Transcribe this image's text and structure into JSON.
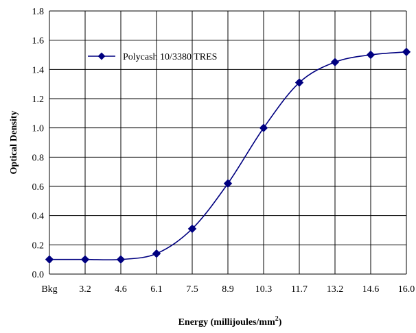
{
  "chart_data": {
    "type": "line",
    "categories": [
      "Bkg",
      "3.2",
      "4.6",
      "6.1",
      "7.5",
      "8.9",
      "10.3",
      "11.7",
      "13.2",
      "14.6",
      "16.0"
    ],
    "series": [
      {
        "name": "Polycash 10/3380 TRES",
        "values": [
          0.1,
          0.1,
          0.1,
          0.14,
          0.31,
          0.62,
          1.0,
          1.31,
          1.45,
          1.5,
          1.52
        ]
      }
    ],
    "ylim": [
      0.0,
      1.8
    ],
    "yticks": [
      "0.0",
      "0.2",
      "0.4",
      "0.6",
      "0.8",
      "1.0",
      "1.2",
      "1.4",
      "1.6",
      "1.8"
    ],
    "ylabel": "Optical Density",
    "xlabel": "Energy (millijoules/mm",
    "xlabel_superscript": "2",
    "xlabel_suffix": ")",
    "grid": true,
    "legend_position": "top-left",
    "colors": {
      "series": "#000080",
      "grid": "#000000",
      "background": "#ffffff"
    },
    "marker": "diamond-icon",
    "smooth": true
  }
}
